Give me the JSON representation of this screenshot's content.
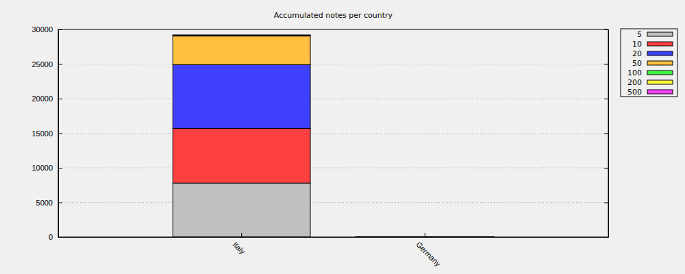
{
  "chart_data": {
    "type": "bar",
    "title": "Accumulated notes per country",
    "categories": [
      "Italy",
      "Germany"
    ],
    "series": [
      {
        "name": "5",
        "color": "#c0c0c0",
        "values": [
          7800,
          10
        ]
      },
      {
        "name": "10",
        "color": "#ff4040",
        "values": [
          7900,
          20
        ]
      },
      {
        "name": "20",
        "color": "#4040ff",
        "values": [
          9200,
          15
        ]
      },
      {
        "name": "50",
        "color": "#ffc040",
        "values": [
          4150,
          5
        ]
      },
      {
        "name": "100",
        "color": "#40ff40",
        "values": [
          100,
          0
        ]
      },
      {
        "name": "200",
        "color": "#ffff40",
        "values": [
          30,
          0
        ]
      },
      {
        "name": "500",
        "color": "#ff40ff",
        "values": [
          20,
          0
        ]
      }
    ],
    "stacked": true,
    "ylim": [
      0,
      30000
    ],
    "yticks": [
      0,
      5000,
      10000,
      15000,
      20000,
      25000,
      30000
    ],
    "grid": true,
    "legend": "top-right"
  }
}
